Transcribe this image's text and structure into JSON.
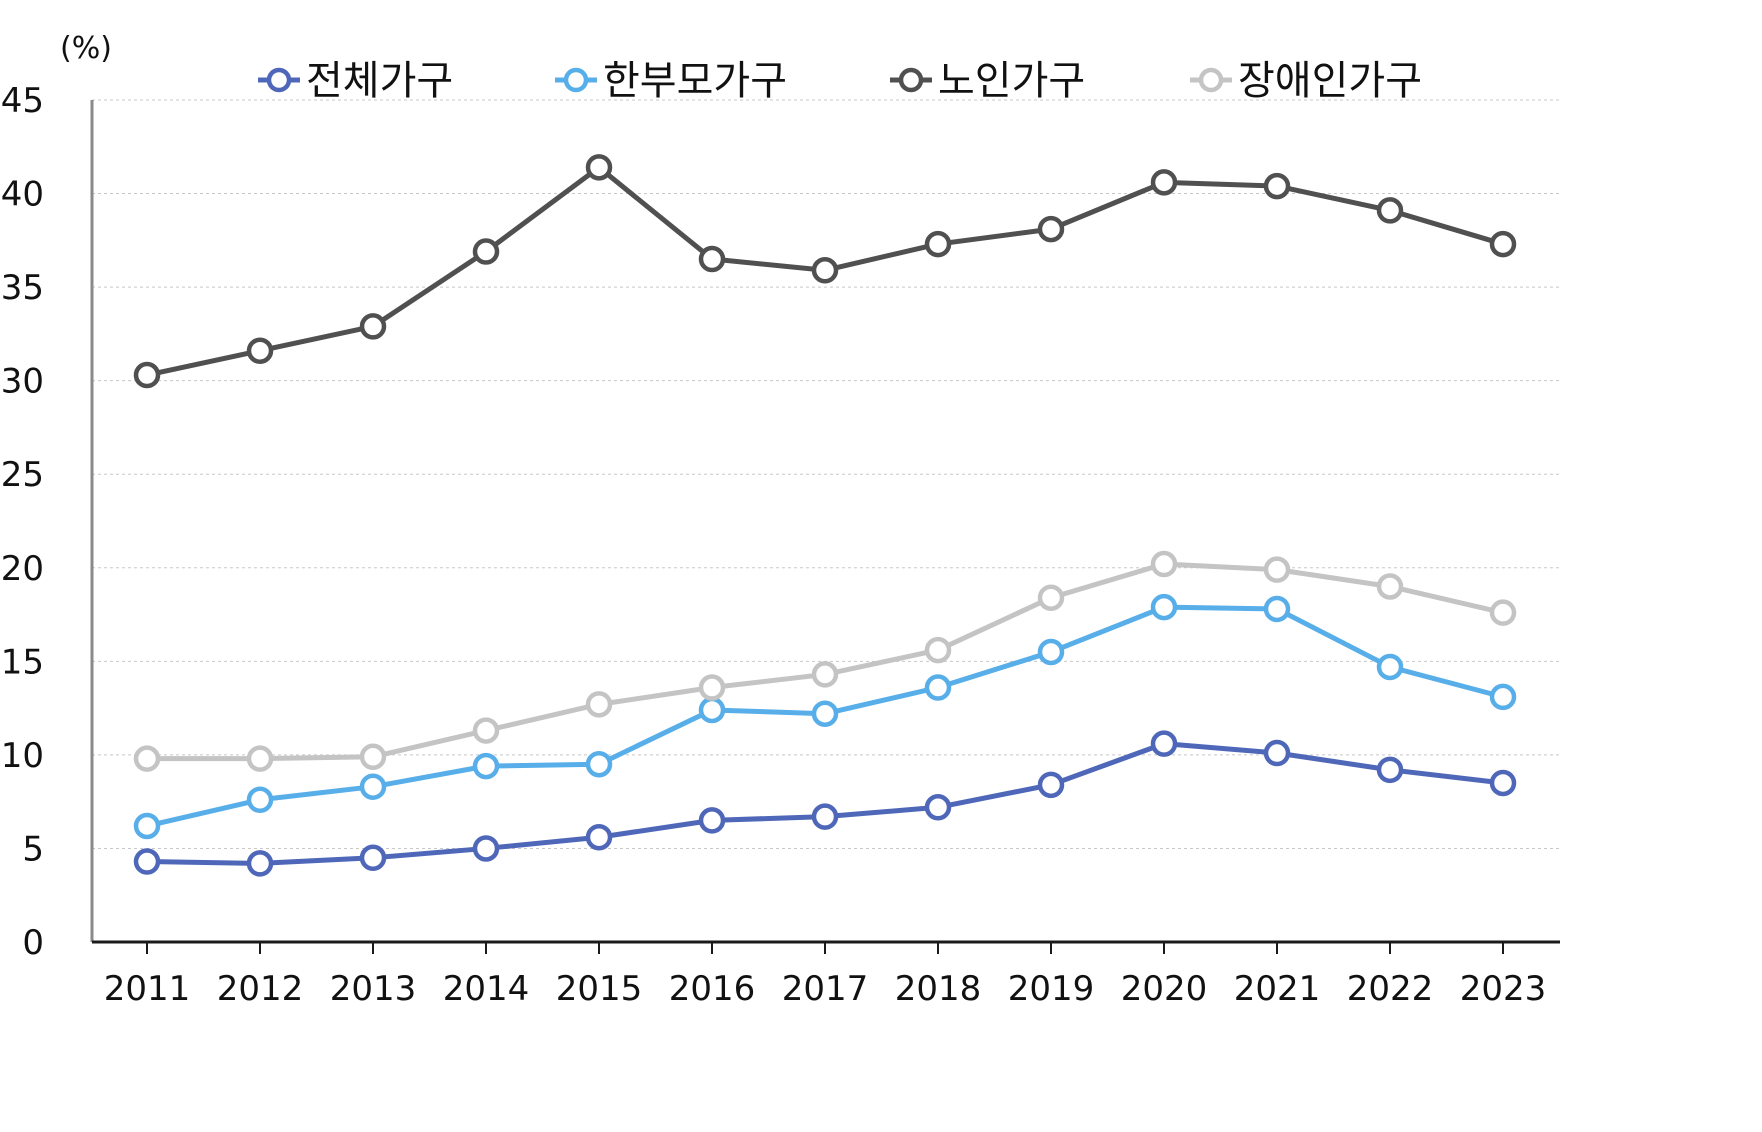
{
  "chart_data": {
    "type": "line",
    "unit_label": "(%)",
    "x": [
      "2011",
      "2012",
      "2013",
      "2014",
      "2015",
      "2016",
      "2017",
      "2018",
      "2019",
      "2020",
      "2021",
      "2022",
      "2023"
    ],
    "ylim": [
      0,
      45
    ],
    "yticks": [
      0,
      5,
      10,
      15,
      20,
      25,
      30,
      35,
      40,
      45
    ],
    "grid": true,
    "legend_position": "top",
    "series": [
      {
        "name": "전체가구",
        "color": "#4f67b8",
        "values": [
          4.3,
          4.2,
          4.5,
          5.0,
          5.6,
          6.5,
          6.7,
          7.2,
          8.4,
          10.6,
          10.1,
          9.2,
          8.5
        ]
      },
      {
        "name": "한부모가구",
        "color": "#58aee8",
        "values": [
          6.2,
          7.6,
          8.3,
          9.4,
          9.5,
          12.4,
          12.2,
          13.6,
          15.5,
          17.9,
          17.8,
          14.7,
          13.1
        ]
      },
      {
        "name": "노인가구",
        "color": "#505050",
        "values": [
          30.3,
          31.6,
          32.9,
          36.9,
          41.4,
          36.5,
          35.9,
          37.3,
          38.1,
          40.6,
          40.4,
          39.1,
          37.3
        ]
      },
      {
        "name": "장애인가구",
        "color": "#c4c4c4",
        "values": [
          9.8,
          9.8,
          9.9,
          11.3,
          12.7,
          13.6,
          14.3,
          15.6,
          18.4,
          20.2,
          19.9,
          19.0,
          17.6
        ]
      }
    ]
  }
}
